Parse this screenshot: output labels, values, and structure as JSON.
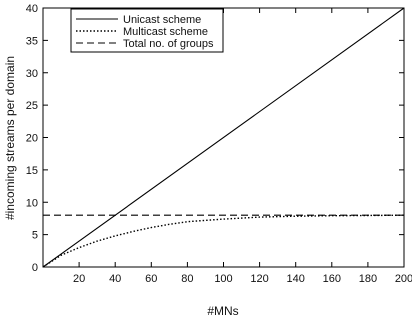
{
  "chart_data": {
    "type": "line",
    "title": "",
    "xlabel": "#MNs",
    "ylabel": "#incoming streams per domain",
    "xlim": [
      0,
      200
    ],
    "ylim": [
      0,
      40
    ],
    "x_ticks": [
      20,
      40,
      60,
      80,
      100,
      120,
      140,
      160,
      180,
      200
    ],
    "y_ticks": [
      0,
      5,
      10,
      15,
      20,
      25,
      30,
      35,
      40
    ],
    "grid": false,
    "legend_position": "top-left",
    "series": [
      {
        "name": "Unicast scheme",
        "style": "solid",
        "color": "#000000",
        "x": [
          0,
          200
        ],
        "y": [
          0,
          40
        ]
      },
      {
        "name": "Multicast scheme",
        "style": "dotted",
        "color": "#000000",
        "x": [
          0,
          10,
          20,
          30,
          40,
          50,
          60,
          70,
          80,
          100,
          120,
          140,
          160,
          180,
          200
        ],
        "y": [
          0,
          1.8,
          3.0,
          4.0,
          4.8,
          5.5,
          6.1,
          6.6,
          7.0,
          7.4,
          7.7,
          7.85,
          7.92,
          7.96,
          8.0
        ]
      },
      {
        "name": "Total no. of groups",
        "style": "dashed",
        "color": "#000000",
        "x": [
          0,
          200
        ],
        "y": [
          8,
          8
        ]
      }
    ]
  }
}
